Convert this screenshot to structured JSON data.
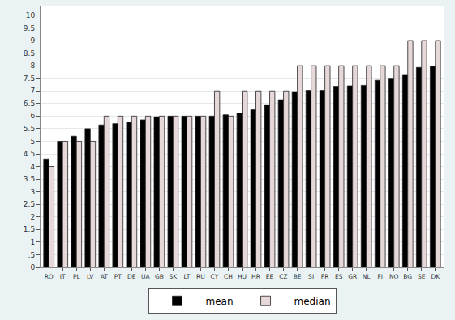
{
  "chart_data": {
    "type": "bar",
    "categories": [
      "RO",
      "IT",
      "PL",
      "LV",
      "AT",
      "PT",
      "DE",
      "UA",
      "GB",
      "SK",
      "LT",
      "RU",
      "CY",
      "CH",
      "HU",
      "HR",
      "EE",
      "CZ",
      "BE",
      "SI",
      "FR",
      "ES",
      "GR",
      "NL",
      "FI",
      "NO",
      "BG",
      "SE",
      "DK"
    ],
    "series": [
      {
        "name": "mean",
        "color": "#000000",
        "values": [
          4.3,
          5.0,
          5.2,
          5.5,
          5.65,
          5.7,
          5.75,
          5.85,
          5.97,
          6.0,
          6.0,
          6.0,
          6.0,
          6.05,
          6.12,
          6.25,
          6.45,
          6.65,
          6.97,
          7.02,
          7.02,
          7.18,
          7.2,
          7.22,
          7.42,
          7.5,
          7.65,
          7.93,
          7.97
        ]
      },
      {
        "name": "median",
        "color": "#e6d8d8",
        "values": [
          4,
          5,
          5,
          5,
          6,
          6,
          6,
          6,
          6,
          6,
          6,
          6,
          7,
          6,
          7,
          7,
          7,
          7,
          8,
          8,
          8,
          8,
          8,
          8,
          8,
          8,
          9,
          9,
          9
        ]
      }
    ],
    "ylim": [
      0,
      10.35
    ],
    "yticks": [
      0,
      {
        "value": 0.5,
        "label": ".5"
      },
      1,
      1.5,
      2,
      2.5,
      3,
      3.5,
      4,
      4.5,
      5,
      5.5,
      6,
      6.5,
      7,
      7.5,
      8,
      8.5,
      9,
      9.5,
      10
    ],
    "grid": true,
    "legend": "bottom"
  }
}
